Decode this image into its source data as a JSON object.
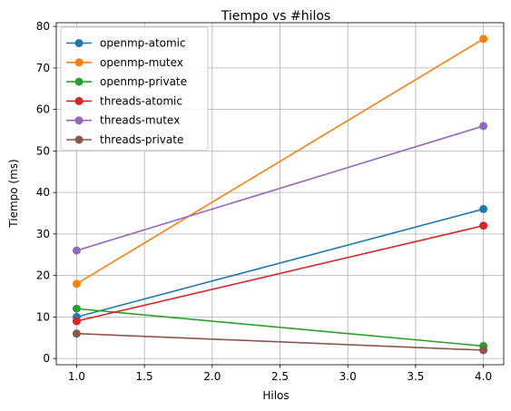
{
  "chart_data": {
    "type": "line",
    "title": "Tiempo vs #hilos",
    "xlabel": "Hilos",
    "ylabel": "Tiempo (ms)",
    "x": [
      1.0,
      4.0
    ],
    "xlim": [
      0.85,
      4.15
    ],
    "ylim": [
      -1.5,
      80.9
    ],
    "xticks": [
      1.0,
      1.5,
      2.0,
      2.5,
      3.0,
      3.5,
      4.0
    ],
    "xtick_labels": [
      "1.0",
      "1.5",
      "2.0",
      "2.5",
      "3.0",
      "3.5",
      "4.0"
    ],
    "yticks": [
      0,
      10,
      20,
      30,
      40,
      50,
      60,
      70,
      80
    ],
    "ytick_labels": [
      "0",
      "10",
      "20",
      "30",
      "40",
      "50",
      "60",
      "70",
      "80"
    ],
    "grid": true,
    "legend_position": "top-left",
    "series": [
      {
        "name": "openmp-atomic",
        "color": "#1f77b4",
        "values": [
          10,
          36
        ]
      },
      {
        "name": "openmp-mutex",
        "color": "#ff7f0e",
        "values": [
          18,
          77
        ]
      },
      {
        "name": "openmp-private",
        "color": "#2ca02c",
        "values": [
          12,
          3
        ]
      },
      {
        "name": "threads-atomic",
        "color": "#d62728",
        "values": [
          9,
          32
        ]
      },
      {
        "name": "threads-mutex",
        "color": "#9467bd",
        "values": [
          26,
          56
        ]
      },
      {
        "name": "threads-private",
        "color": "#8c564b",
        "values": [
          6,
          2
        ]
      }
    ]
  }
}
